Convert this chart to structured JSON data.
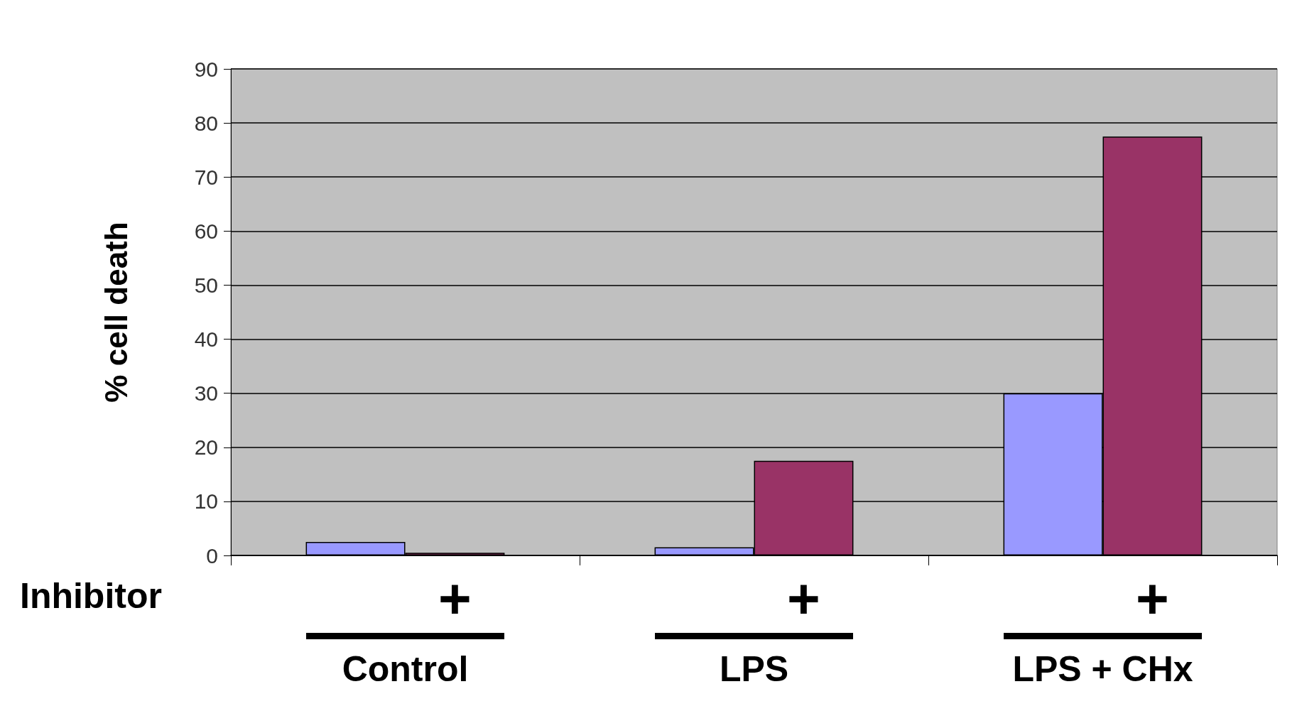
{
  "chart_data": {
    "type": "bar",
    "ylabel": "% cell death",
    "categories": [
      "Control",
      "LPS",
      "LPS + CHx"
    ],
    "series": [
      {
        "color": "#9999ff",
        "values": [
          2.5,
          1.5,
          30
        ]
      },
      {
        "color": "#993366",
        "values": [
          0.5,
          17.5,
          77.5
        ]
      }
    ],
    "ylim": [
      0,
      90
    ],
    "yticks": [
      0,
      10,
      20,
      30,
      40,
      50,
      60,
      70,
      80,
      90
    ],
    "grid": "y",
    "annotations": [
      "Inhibitor",
      "+",
      "+",
      "+"
    ]
  }
}
